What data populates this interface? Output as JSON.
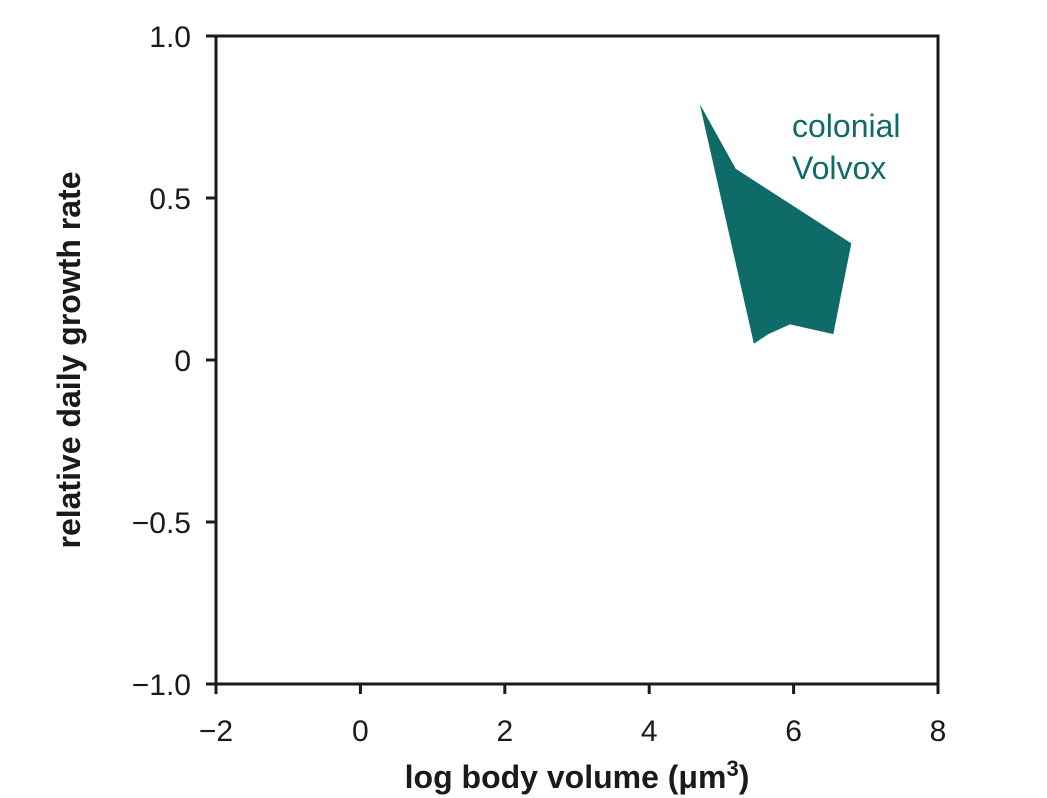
{
  "chart_data": {
    "type": "area",
    "xlabel": "log body volume (μm",
    "xlabel_superscript": "3",
    "xlabel_suffix": ")",
    "ylabel": "relative daily growth rate",
    "xlim": [
      -2,
      8
    ],
    "ylim": [
      -1.0,
      1.0
    ],
    "xticks": [
      -2,
      0,
      2,
      4,
      6,
      8
    ],
    "xtick_labels": [
      "−2",
      "0",
      "2",
      "4",
      "6",
      "8"
    ],
    "yticks": [
      1.0,
      0.5,
      0,
      -0.5,
      -1.0
    ],
    "ytick_labels": [
      "1.0",
      "0.5",
      "0",
      "−0.5",
      "−1.0"
    ],
    "grid": false,
    "series": [
      {
        "name": "colonial Volvox",
        "label_lines": [
          "colonial",
          "Volvox"
        ],
        "color": "#0f6b68",
        "polygon": [
          [
            4.7,
            0.79
          ],
          [
            5.2,
            0.59
          ],
          [
            6.8,
            0.36
          ],
          [
            6.55,
            0.08
          ],
          [
            5.95,
            0.11
          ],
          [
            5.65,
            0.08
          ],
          [
            5.45,
            0.05
          ]
        ]
      }
    ]
  }
}
